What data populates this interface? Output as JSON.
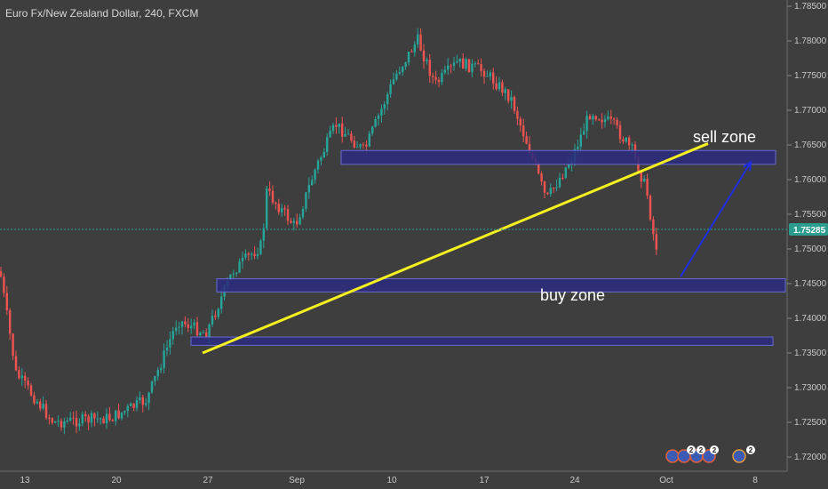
{
  "chart_title": "Euro Fx/New Zealand Dollar, 240, FXCM",
  "colors": {
    "background": "#3e3e3e",
    "up_candle": "#26a69a",
    "down_candle": "#ef5350",
    "zone_fill": "#2b2b80",
    "zone_stroke": "#6a6ad0",
    "trendline": "#f5f020",
    "arrow": "#1e2ee0",
    "price_tag": "#2a9d8f"
  },
  "chart_data": {
    "type": "candlestick",
    "y_ticks": [
      "1.78500",
      "1.78000",
      "1.77500",
      "1.77000",
      "1.76500",
      "1.76000",
      "1.75500",
      "1.75000",
      "1.74500",
      "1.74000",
      "1.73500",
      "1.73000",
      "1.72500",
      "1.72000"
    ],
    "x_ticks": [
      "13",
      "20",
      "27",
      "Sep",
      "10",
      "17",
      "24",
      "Oct",
      "8"
    ],
    "last_price": "1.75285",
    "sell_zone": {
      "label": "sell zone",
      "from": 1.7622,
      "to": 1.7642
    },
    "buy_zone": {
      "label": "buy zone",
      "from": 1.7438,
      "to": 1.7457
    },
    "lower_zone": {
      "from": 1.7361,
      "to": 1.7373
    },
    "trendline": {
      "start_price": 1.735,
      "end_price": 1.7652
    },
    "arrow": {
      "start_price": 1.746,
      "end_price": 1.7625
    },
    "event_badges": [
      "2",
      "2",
      "2",
      "2"
    ]
  }
}
